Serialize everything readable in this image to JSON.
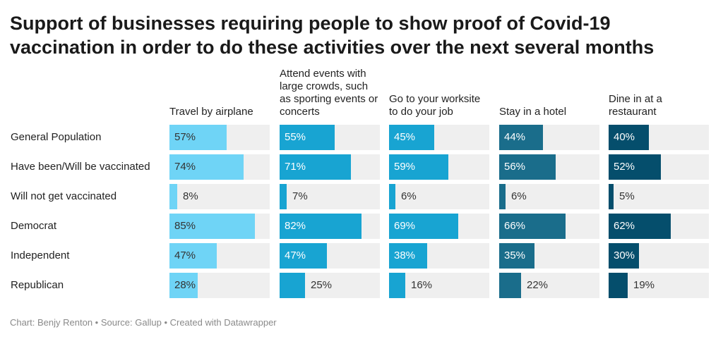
{
  "chart_data": {
    "type": "bar",
    "title": "Support of businesses requiring people to show proof of Covid-19 vaccination in order to do these activities over the next several months",
    "categories": [
      "General Population",
      "Have been/Will be vaccinated",
      "Will not get vaccinated",
      "Democrat",
      "Independent",
      "Republican"
    ],
    "series": [
      {
        "name": "Travel by airplane",
        "color": "#6fd4f6",
        "values": [
          57,
          74,
          8,
          85,
          47,
          28
        ]
      },
      {
        "name": "Attend events with large crowds, such as sporting events or concerts",
        "color": "#18a4d2",
        "values": [
          55,
          71,
          7,
          82,
          47,
          25
        ]
      },
      {
        "name": "Go to your worksite to do your job",
        "color": "#18a4d2",
        "values": [
          45,
          59,
          6,
          69,
          38,
          16
        ]
      },
      {
        "name": "Stay in a hotel",
        "color": "#1a6d8b",
        "values": [
          44,
          56,
          6,
          66,
          35,
          22
        ]
      },
      {
        "name": "Dine in at a restaurant",
        "color": "#054e6c",
        "values": [
          40,
          52,
          5,
          62,
          30,
          19
        ]
      }
    ],
    "value_suffix": "%",
    "xlim": [
      0,
      100
    ]
  },
  "footer": "Chart: Benjy Renton • Source: Gallup • Created with Datawrapper"
}
